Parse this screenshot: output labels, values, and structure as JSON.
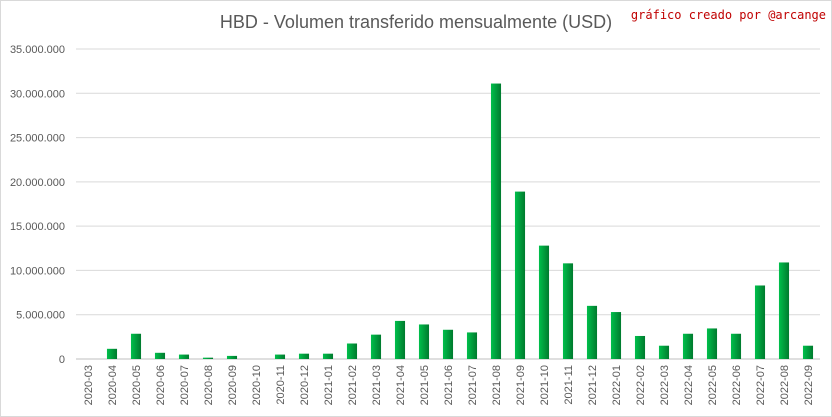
{
  "chart_data": {
    "type": "bar",
    "title": "HBD - Volumen transferido mensualmente (USD)",
    "annotation": "gráfico creado por @arcange",
    "ylim": [
      0,
      35000000
    ],
    "yticks": [
      0,
      5000000,
      10000000,
      15000000,
      20000000,
      25000000,
      30000000,
      35000000
    ],
    "ytick_labels": [
      "0",
      "5.000.000",
      "10.000.000",
      "15.000.000",
      "20.000.000",
      "25.000.000",
      "30.000.000",
      "35.000.000"
    ],
    "grid": true,
    "legend": "none",
    "bar_color": "#00a03c",
    "categories": [
      "2020-03",
      "2020-04",
      "2020-05",
      "2020-06",
      "2020-07",
      "2020-08",
      "2020-09",
      "2020-10",
      "2020-11",
      "2020-12",
      "2021-01",
      "2021-02",
      "2021-03",
      "2021-04",
      "2021-05",
      "2021-06",
      "2021-07",
      "2021-08",
      "2021-09",
      "2021-10",
      "2021-11",
      "2021-12",
      "2022-01",
      "2022-02",
      "2022-03",
      "2022-04",
      "2022-05",
      "2022-06",
      "2022-07",
      "2022-08",
      "2022-09"
    ],
    "values": [
      0,
      1150000,
      2850000,
      700000,
      500000,
      150000,
      350000,
      0,
      500000,
      600000,
      600000,
      1750000,
      2750000,
      4300000,
      3900000,
      3300000,
      3000000,
      31100000,
      18900000,
      12800000,
      10800000,
      6000000,
      5300000,
      2600000,
      1500000,
      2850000,
      3450000,
      2850000,
      8300000,
      10900000,
      1500000
    ]
  }
}
